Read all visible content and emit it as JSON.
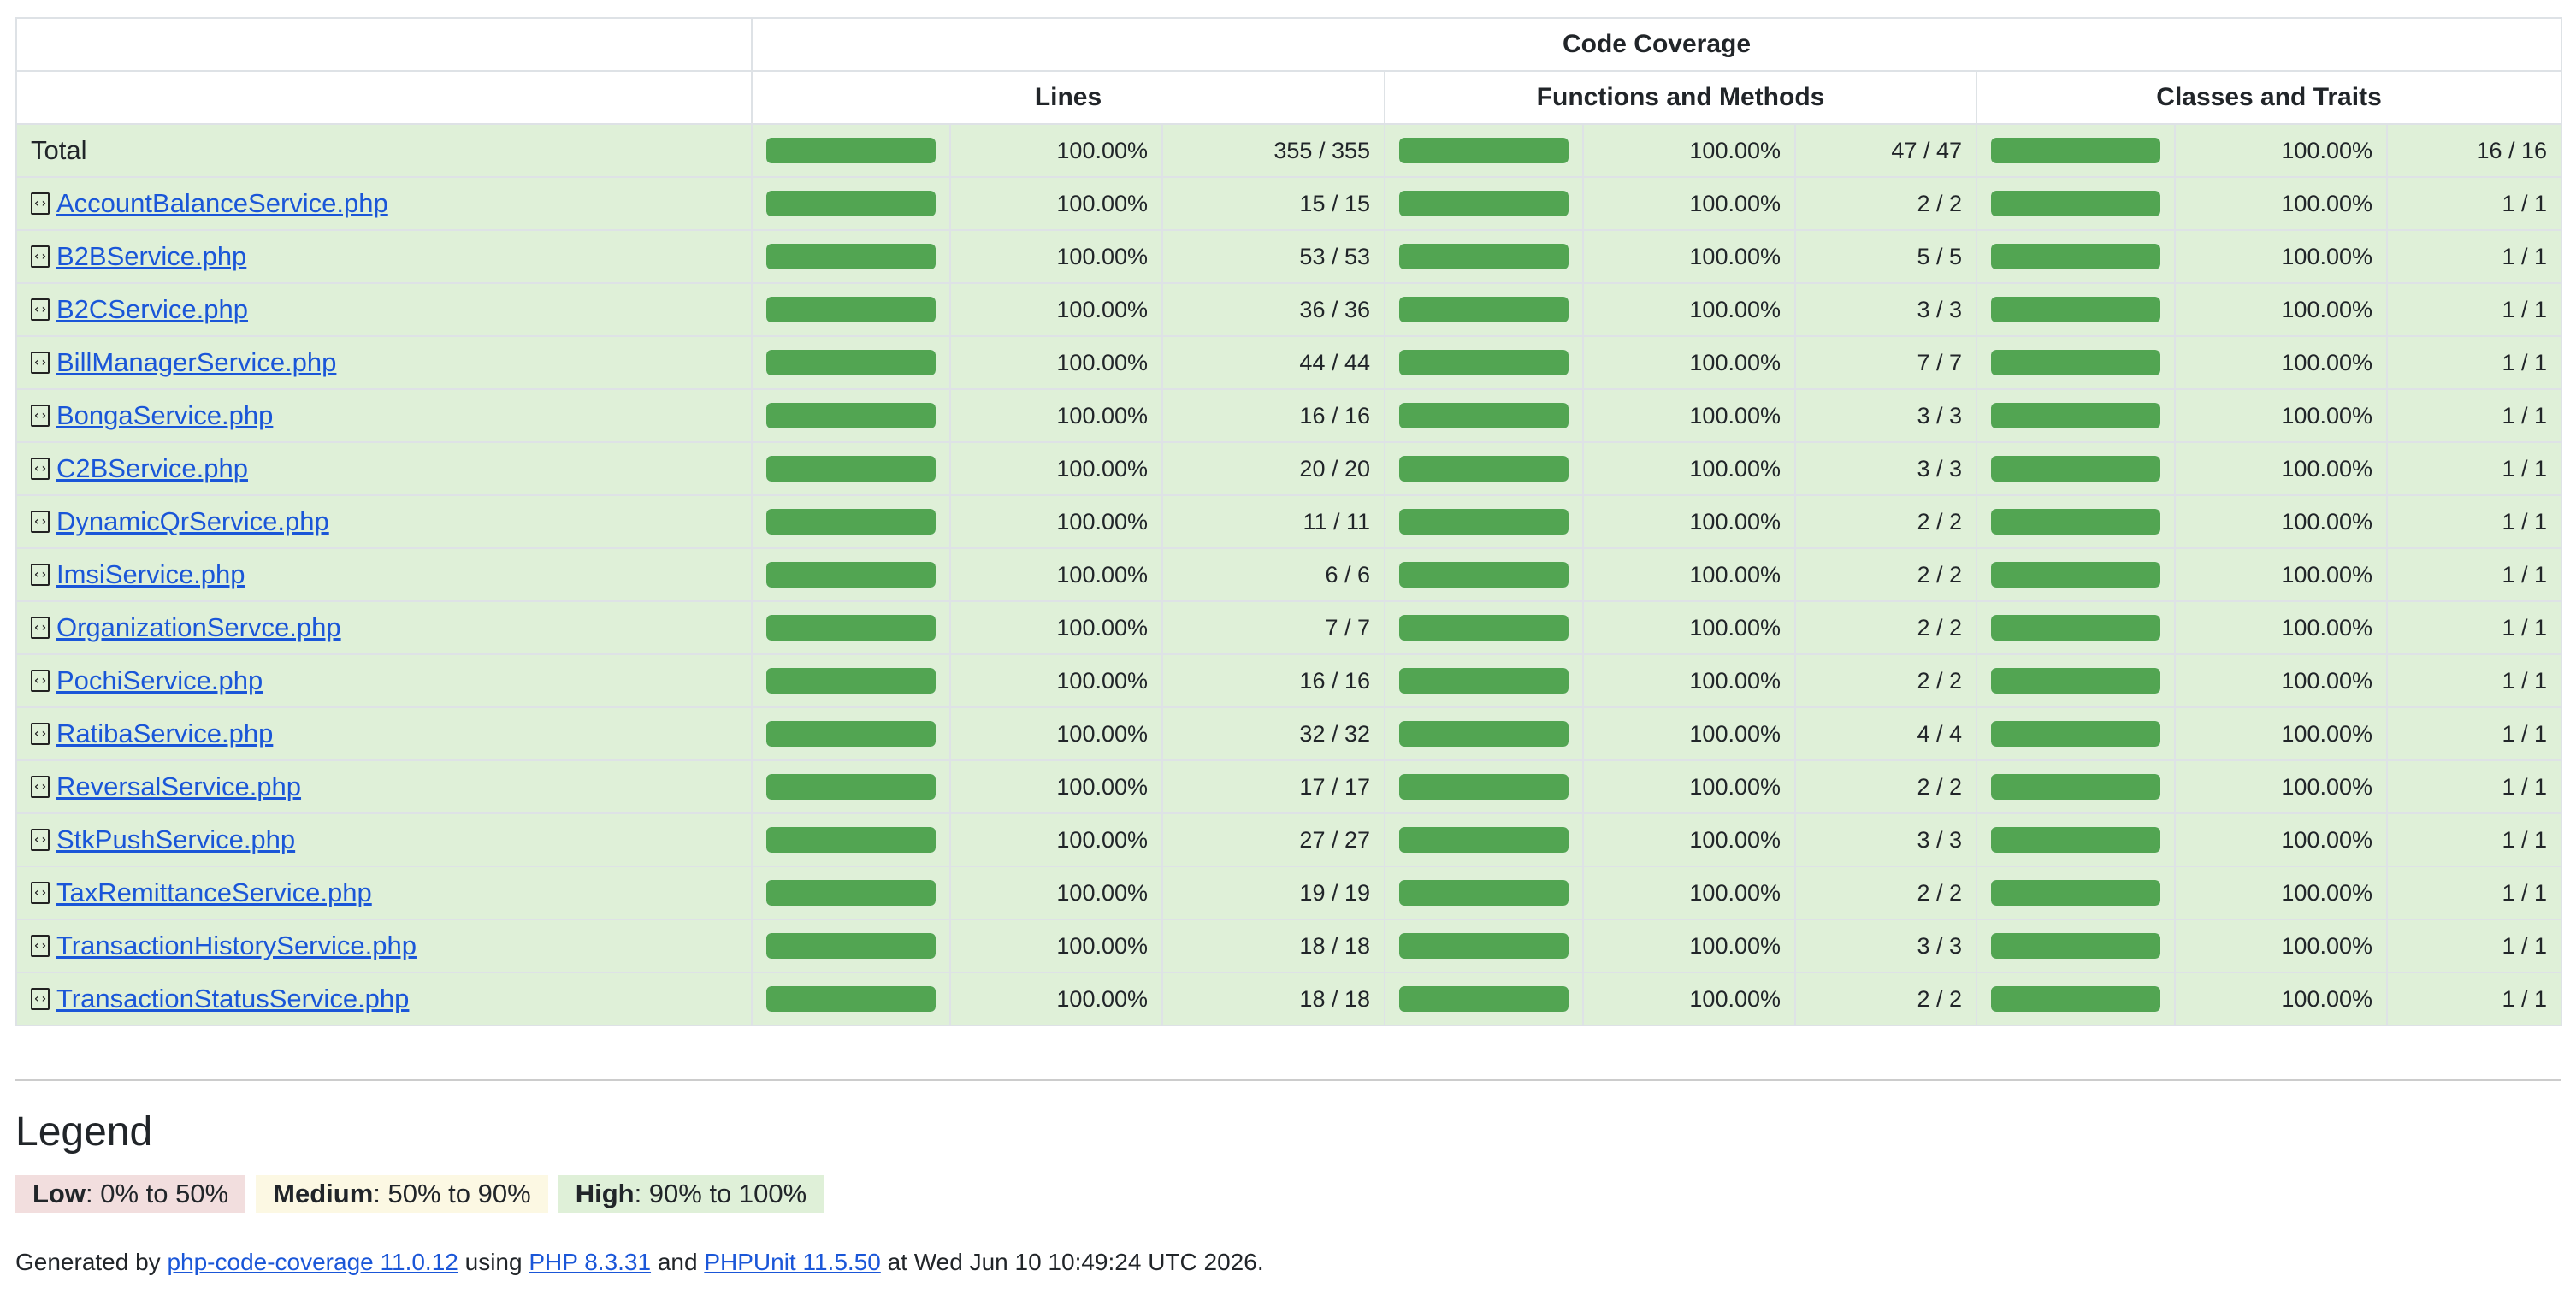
{
  "header": {
    "group_title": "Code Coverage",
    "columns": [
      "Lines",
      "Functions and Methods",
      "Classes and Traits"
    ]
  },
  "colors": {
    "high_row": "#dff0d8",
    "bar_fill": "#52a552",
    "link": "#1a56d8"
  },
  "rows": [
    {
      "name": "Total",
      "link": false,
      "lines_pct": "100.00%",
      "lines": "355 / 355",
      "funcs_pct": "100.00%",
      "funcs": "47 / 47",
      "classes_pct": "100.00%",
      "classes": "16 / 16",
      "fill": 1.0
    },
    {
      "name": "AccountBalanceService.php",
      "link": true,
      "lines_pct": "100.00%",
      "lines": "15 / 15",
      "funcs_pct": "100.00%",
      "funcs": "2 / 2",
      "classes_pct": "100.00%",
      "classes": "1 / 1",
      "fill": 1.0
    },
    {
      "name": "B2BService.php",
      "link": true,
      "lines_pct": "100.00%",
      "lines": "53 / 53",
      "funcs_pct": "100.00%",
      "funcs": "5 / 5",
      "classes_pct": "100.00%",
      "classes": "1 / 1",
      "fill": 1.0
    },
    {
      "name": "B2CService.php",
      "link": true,
      "lines_pct": "100.00%",
      "lines": "36 / 36",
      "funcs_pct": "100.00%",
      "funcs": "3 / 3",
      "classes_pct": "100.00%",
      "classes": "1 / 1",
      "fill": 1.0
    },
    {
      "name": "BillManagerService.php",
      "link": true,
      "lines_pct": "100.00%",
      "lines": "44 / 44",
      "funcs_pct": "100.00%",
      "funcs": "7 / 7",
      "classes_pct": "100.00%",
      "classes": "1 / 1",
      "fill": 1.0
    },
    {
      "name": "BongaService.php",
      "link": true,
      "lines_pct": "100.00%",
      "lines": "16 / 16",
      "funcs_pct": "100.00%",
      "funcs": "3 / 3",
      "classes_pct": "100.00%",
      "classes": "1 / 1",
      "fill": 1.0
    },
    {
      "name": "C2BService.php",
      "link": true,
      "lines_pct": "100.00%",
      "lines": "20 / 20",
      "funcs_pct": "100.00%",
      "funcs": "3 / 3",
      "classes_pct": "100.00%",
      "classes": "1 / 1",
      "fill": 1.0
    },
    {
      "name": "DynamicQrService.php",
      "link": true,
      "lines_pct": "100.00%",
      "lines": "11 / 11",
      "funcs_pct": "100.00%",
      "funcs": "2 / 2",
      "classes_pct": "100.00%",
      "classes": "1 / 1",
      "fill": 1.0
    },
    {
      "name": "ImsiService.php",
      "link": true,
      "lines_pct": "100.00%",
      "lines": "6 / 6",
      "funcs_pct": "100.00%",
      "funcs": "2 / 2",
      "classes_pct": "100.00%",
      "classes": "1 / 1",
      "fill": 1.0
    },
    {
      "name": "OrganizationServce.php",
      "link": true,
      "lines_pct": "100.00%",
      "lines": "7 / 7",
      "funcs_pct": "100.00%",
      "funcs": "2 / 2",
      "classes_pct": "100.00%",
      "classes": "1 / 1",
      "fill": 1.0
    },
    {
      "name": "PochiService.php",
      "link": true,
      "lines_pct": "100.00%",
      "lines": "16 / 16",
      "funcs_pct": "100.00%",
      "funcs": "2 / 2",
      "classes_pct": "100.00%",
      "classes": "1 / 1",
      "fill": 1.0
    },
    {
      "name": "RatibaService.php",
      "link": true,
      "lines_pct": "100.00%",
      "lines": "32 / 32",
      "funcs_pct": "100.00%",
      "funcs": "4 / 4",
      "classes_pct": "100.00%",
      "classes": "1 / 1",
      "fill": 1.0
    },
    {
      "name": "ReversalService.php",
      "link": true,
      "lines_pct": "100.00%",
      "lines": "17 / 17",
      "funcs_pct": "100.00%",
      "funcs": "2 / 2",
      "classes_pct": "100.00%",
      "classes": "1 / 1",
      "fill": 1.0
    },
    {
      "name": "StkPushService.php",
      "link": true,
      "lines_pct": "100.00%",
      "lines": "27 / 27",
      "funcs_pct": "100.00%",
      "funcs": "3 / 3",
      "classes_pct": "100.00%",
      "classes": "1 / 1",
      "fill": 1.0
    },
    {
      "name": "TaxRemittanceService.php",
      "link": true,
      "lines_pct": "100.00%",
      "lines": "19 / 19",
      "funcs_pct": "100.00%",
      "funcs": "2 / 2",
      "classes_pct": "100.00%",
      "classes": "1 / 1",
      "fill": 1.0
    },
    {
      "name": "TransactionHistoryService.php",
      "link": true,
      "lines_pct": "100.00%",
      "lines": "18 / 18",
      "funcs_pct": "100.00%",
      "funcs": "3 / 3",
      "classes_pct": "100.00%",
      "classes": "1 / 1",
      "fill": 1.0
    },
    {
      "name": "TransactionStatusService.php",
      "link": true,
      "lines_pct": "100.00%",
      "lines": "18 / 18",
      "funcs_pct": "100.00%",
      "funcs": "2 / 2",
      "classes_pct": "100.00%",
      "classes": "1 / 1",
      "fill": 1.0
    }
  ],
  "legend": {
    "title": "Legend",
    "low_label": "Low",
    "low_range": ": 0% to 50%",
    "medium_label": "Medium",
    "medium_range": ": 50% to 90%",
    "high_label": "High",
    "high_range": ": 90% to 100%"
  },
  "footer": {
    "prefix": "Generated by ",
    "tool_link": "php-code-coverage 11.0.12",
    "using": " using ",
    "php_link": "PHP 8.3.31",
    "and": " and ",
    "phpunit_link": "PHPUnit 11.5.50",
    "suffix": " at Wed Jun 10 10:49:24 UTC 2026."
  }
}
